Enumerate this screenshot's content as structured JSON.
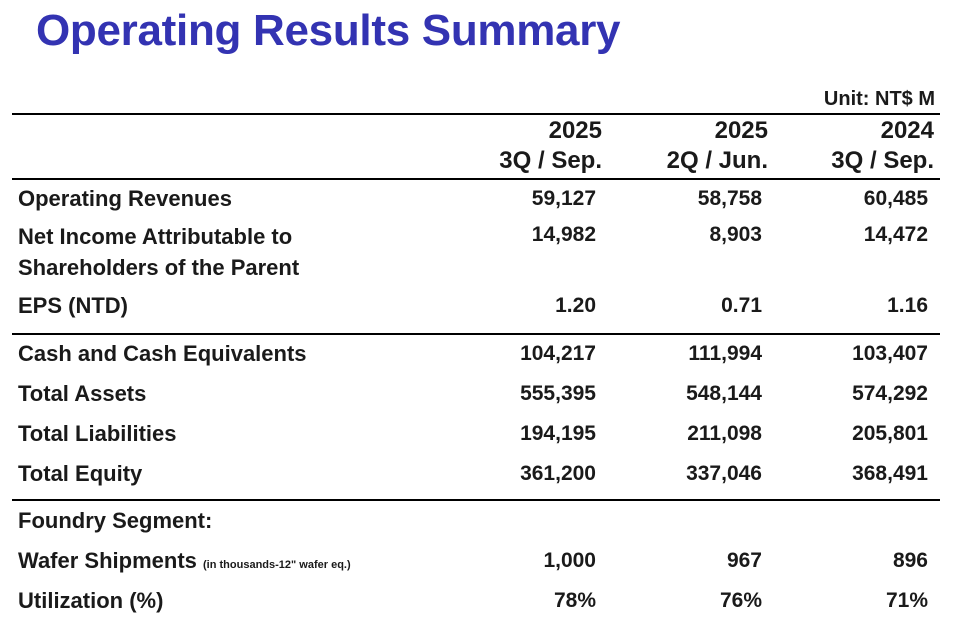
{
  "title": "Operating Results Summary",
  "unit": "Unit: NT$ M",
  "columns": [
    {
      "year": "2025",
      "period": "3Q / Sep."
    },
    {
      "year": "2025",
      "period": "2Q / Jun."
    },
    {
      "year": "2024",
      "period": "3Q / Sep."
    }
  ],
  "rows": {
    "operating_revenues": {
      "label": "Operating Revenues",
      "values": [
        "59,127",
        "58,758",
        "60,485"
      ]
    },
    "net_income": {
      "label_line1": "Net Income Attributable to",
      "label_line2": "Shareholders of the Parent",
      "values": [
        "14,982",
        "8,903",
        "14,472"
      ]
    },
    "eps": {
      "label": "EPS (NTD)",
      "values": [
        "1.20",
        "0.71",
        "1.16"
      ]
    },
    "cash": {
      "label": "Cash and Cash Equivalents",
      "values": [
        "104,217",
        "111,994",
        "103,407"
      ]
    },
    "total_assets": {
      "label": "Total Assets",
      "values": [
        "555,395",
        "548,144",
        "574,292"
      ]
    },
    "total_liabilities": {
      "label": "Total Liabilities",
      "values": [
        "194,195",
        "211,098",
        "205,801"
      ]
    },
    "total_equity": {
      "label": "Total Equity",
      "values": [
        "361,200",
        "337,046",
        "368,491"
      ]
    },
    "foundry_segment": {
      "label": "Foundry Segment:"
    },
    "wafer_shipments": {
      "label": "Wafer Shipments",
      "note": "(in thousands-12\" wafer eq.)",
      "values": [
        "1,000",
        "967",
        "896"
      ]
    },
    "utilization": {
      "label": "Utilization (%)",
      "values": [
        "78%",
        "76%",
        "71%"
      ]
    }
  }
}
